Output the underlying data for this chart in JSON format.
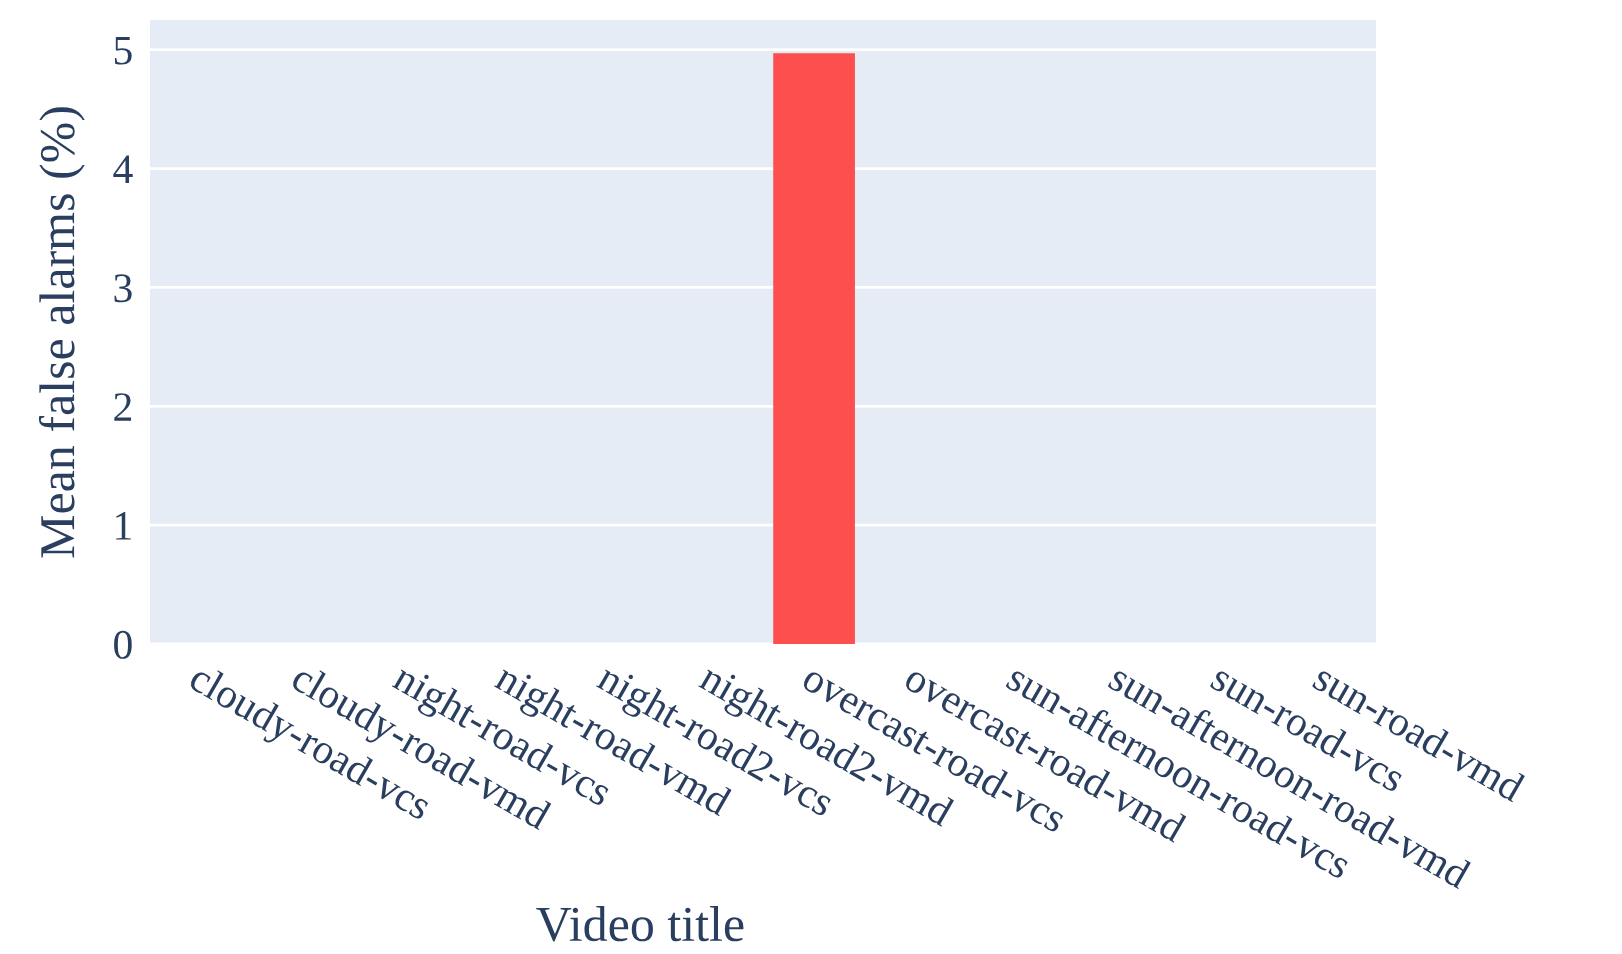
{
  "chart_data": {
    "type": "bar",
    "xlabel": "Video title",
    "ylabel": "Mean false alarms (%)",
    "categories": [
      "cloudy-road-vcs",
      "cloudy-road-vmd",
      "night-road-vcs",
      "night-road-vmd",
      "night-road2-vcs",
      "night-road2-vmd",
      "overcast-road-vcs",
      "overcast-road-vmd",
      "sun-afternoon-road-vcs",
      "sun-afternoon-road-vmd",
      "sun-road-vcs",
      "sun-road-vmd"
    ],
    "values": [
      0,
      0,
      0,
      0,
      0,
      0,
      4.97,
      0,
      0,
      0,
      0,
      0
    ],
    "color": "#fe4f4f",
    "ylim": [
      0,
      5.25
    ],
    "yticks": [
      0,
      1,
      2,
      3,
      4,
      5
    ],
    "grid": "y",
    "legend": false
  }
}
